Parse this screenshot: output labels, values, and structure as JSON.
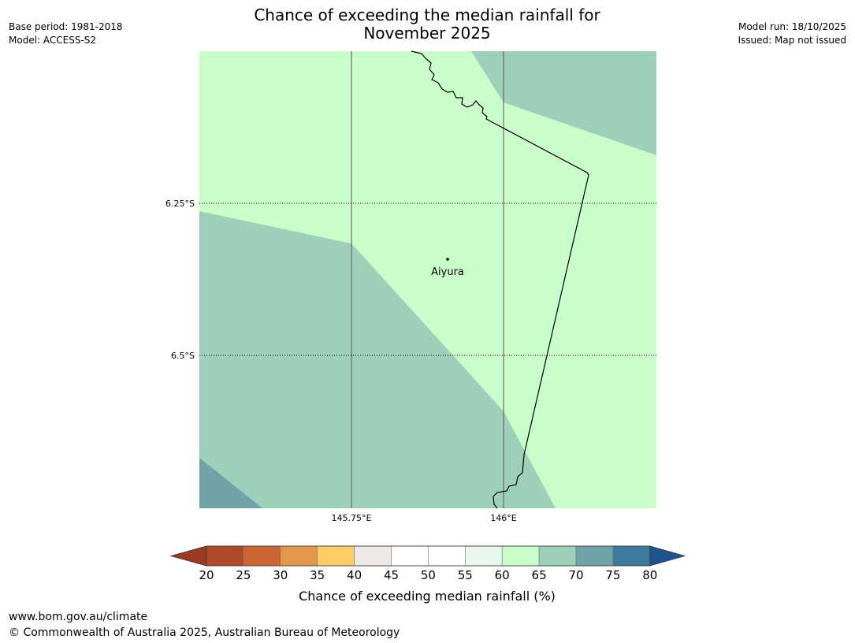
{
  "header": {
    "title_line1": "Chance of exceeding the median rainfall for",
    "title_line2": "November 2025",
    "base_period": "Base period: 1981-2018",
    "model": "Model: ACCESS-S2",
    "model_run": "Model run: 18/10/2025",
    "issued": "Issued: Map not issued"
  },
  "map": {
    "lat_labels": [
      "6.25°S",
      "6.5°S"
    ],
    "lon_labels": [
      "145.75°E",
      "146°E"
    ],
    "place": "Aiyura"
  },
  "legend": {
    "ticks": [
      "20",
      "25",
      "30",
      "35",
      "40",
      "45",
      "50",
      "55",
      "60",
      "65",
      "70",
      "75",
      "80"
    ],
    "colors": [
      "#b04a26",
      "#cd6434",
      "#e3984a",
      "#fecd67",
      "#ede9e4",
      "#ffffff",
      "#ffffff",
      "#e9f7ec",
      "#c9fdca",
      "#9ed0b9",
      "#6fa3a8",
      "#3e7a9c"
    ],
    "under_color": "#9b3a22",
    "over_color": "#1d548e",
    "label": "Chance of exceeding median rainfall (%)"
  },
  "footer": {
    "url": "www.bom.gov.au/climate",
    "copyright": "© Commonwealth of Australia 2025, Australian Bureau of Meteorology"
  }
}
